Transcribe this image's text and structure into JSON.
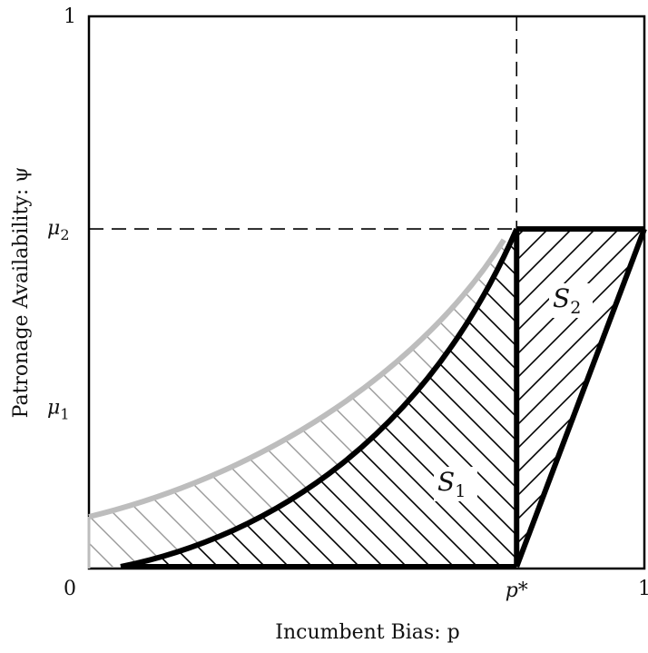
{
  "chart_data": {
    "type": "diagram",
    "xlabel": "Incumbent Bias: p",
    "ylabel": "Patronage Availability: ψ",
    "x_ticks": {
      "zero": "0",
      "p_star": "p*",
      "one": "1"
    },
    "y_ticks": {
      "one": "1",
      "mu2": "μ2",
      "mu1": "μ1"
    },
    "regions": {
      "s1": "S1",
      "s2": "S2"
    },
    "values": {
      "p_star": 0.77,
      "mu1": 0.29,
      "mu2": 0.615
    },
    "colors": {
      "boundary": "#000000",
      "gray_curve": "#bdbdbd",
      "frame": "#000000"
    }
  }
}
